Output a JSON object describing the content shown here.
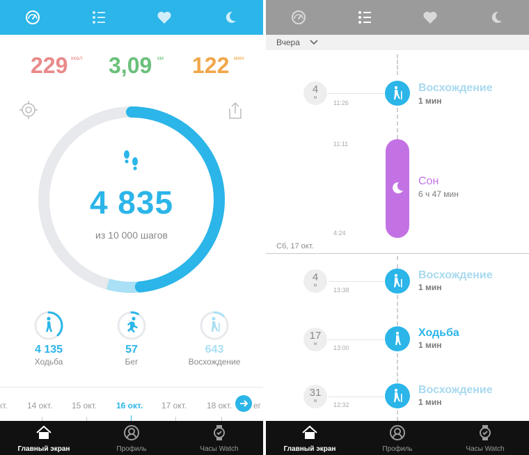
{
  "left": {
    "stats": [
      {
        "value": "229",
        "unit": "ккал",
        "color": "#e98a8a"
      },
      {
        "value": "3,09",
        "unit": "км",
        "color": "#6ac07b"
      },
      {
        "value": "122",
        "unit": "мин",
        "color": "#f1a74a"
      }
    ],
    "steps": {
      "value": "4 835",
      "goal_text": "из 10 000 шагов",
      "progress": 0.4835
    },
    "activities": [
      {
        "value": "4 135",
        "label": "Ходьба",
        "progress": 0.38
      },
      {
        "value": "57",
        "label": "Бег",
        "progress": 0.08
      },
      {
        "value": "643",
        "label": "Восхождение",
        "progress": 0.12
      }
    ],
    "dates": [
      "кт.",
      "14 окт.",
      "15 окт.",
      "16 окт.",
      "17 окт.",
      "18 окт.",
      "ег"
    ],
    "active_date": "16 окт."
  },
  "right": {
    "filter_label": "Вчера",
    "day_label": "Сб, 17 окт.",
    "events": [
      {
        "duration": "4",
        "unit": "м",
        "time": "11:26",
        "title": "Восхождение",
        "subtitle": "1 мин"
      },
      {
        "duration": "4",
        "unit": "м",
        "time": "13:38",
        "title": "Восхождение",
        "subtitle": "1 мин"
      },
      {
        "duration": "17",
        "unit": "м",
        "time": "13:00",
        "title": "Ходьба",
        "subtitle": "1 мин"
      },
      {
        "duration": "31",
        "unit": "м",
        "time": "12:32",
        "title": "Восхождение",
        "subtitle": "1 мин"
      }
    ],
    "sleep": {
      "title": "Сон",
      "subtitle": "6 ч  47 мин",
      "time_start": "11:11",
      "time_end": "4:24"
    }
  },
  "bottom_tabs": [
    {
      "label": "Главный экран",
      "icon": "home-icon"
    },
    {
      "label": "Профиль",
      "icon": "profile-icon"
    },
    {
      "label": "Часы Watch",
      "icon": "watch-icon"
    }
  ],
  "colors": {
    "accent": "#2bb5e8",
    "sleep": "#c372e4",
    "grey_bar": "#9b9b9b",
    "dark": "#111111"
  }
}
